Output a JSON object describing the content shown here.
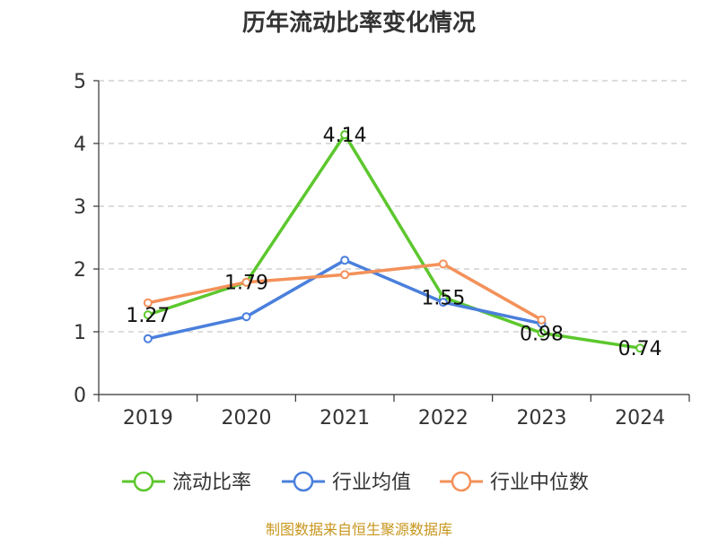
{
  "chart_data": {
    "type": "line",
    "title": "历年流动比率变化情况",
    "categories": [
      "2019",
      "2020",
      "2021",
      "2022",
      "2023",
      "2024"
    ],
    "ylim": [
      0,
      5
    ],
    "yticks": [
      "0",
      "1",
      "2",
      "3",
      "4",
      "5"
    ],
    "grid": true,
    "legend_position": "bottom",
    "series": [
      {
        "name": "流动比率",
        "color": "#5cc72d",
        "values": [
          1.27,
          1.79,
          4.14,
          1.55,
          0.98,
          0.74
        ],
        "labels": [
          "1.27",
          "1.79",
          "4.14",
          "1.55",
          "0.98",
          "0.74"
        ]
      },
      {
        "name": "行业均值",
        "color": "#4a7fdc",
        "values": [
          0.89,
          1.24,
          2.14,
          1.47,
          1.13,
          null
        ]
      },
      {
        "name": "行业中位数",
        "color": "#f3915a",
        "values": [
          1.46,
          1.79,
          1.91,
          2.08,
          1.19,
          null
        ]
      }
    ],
    "source": "制图数据来自恒生聚源数据库"
  }
}
